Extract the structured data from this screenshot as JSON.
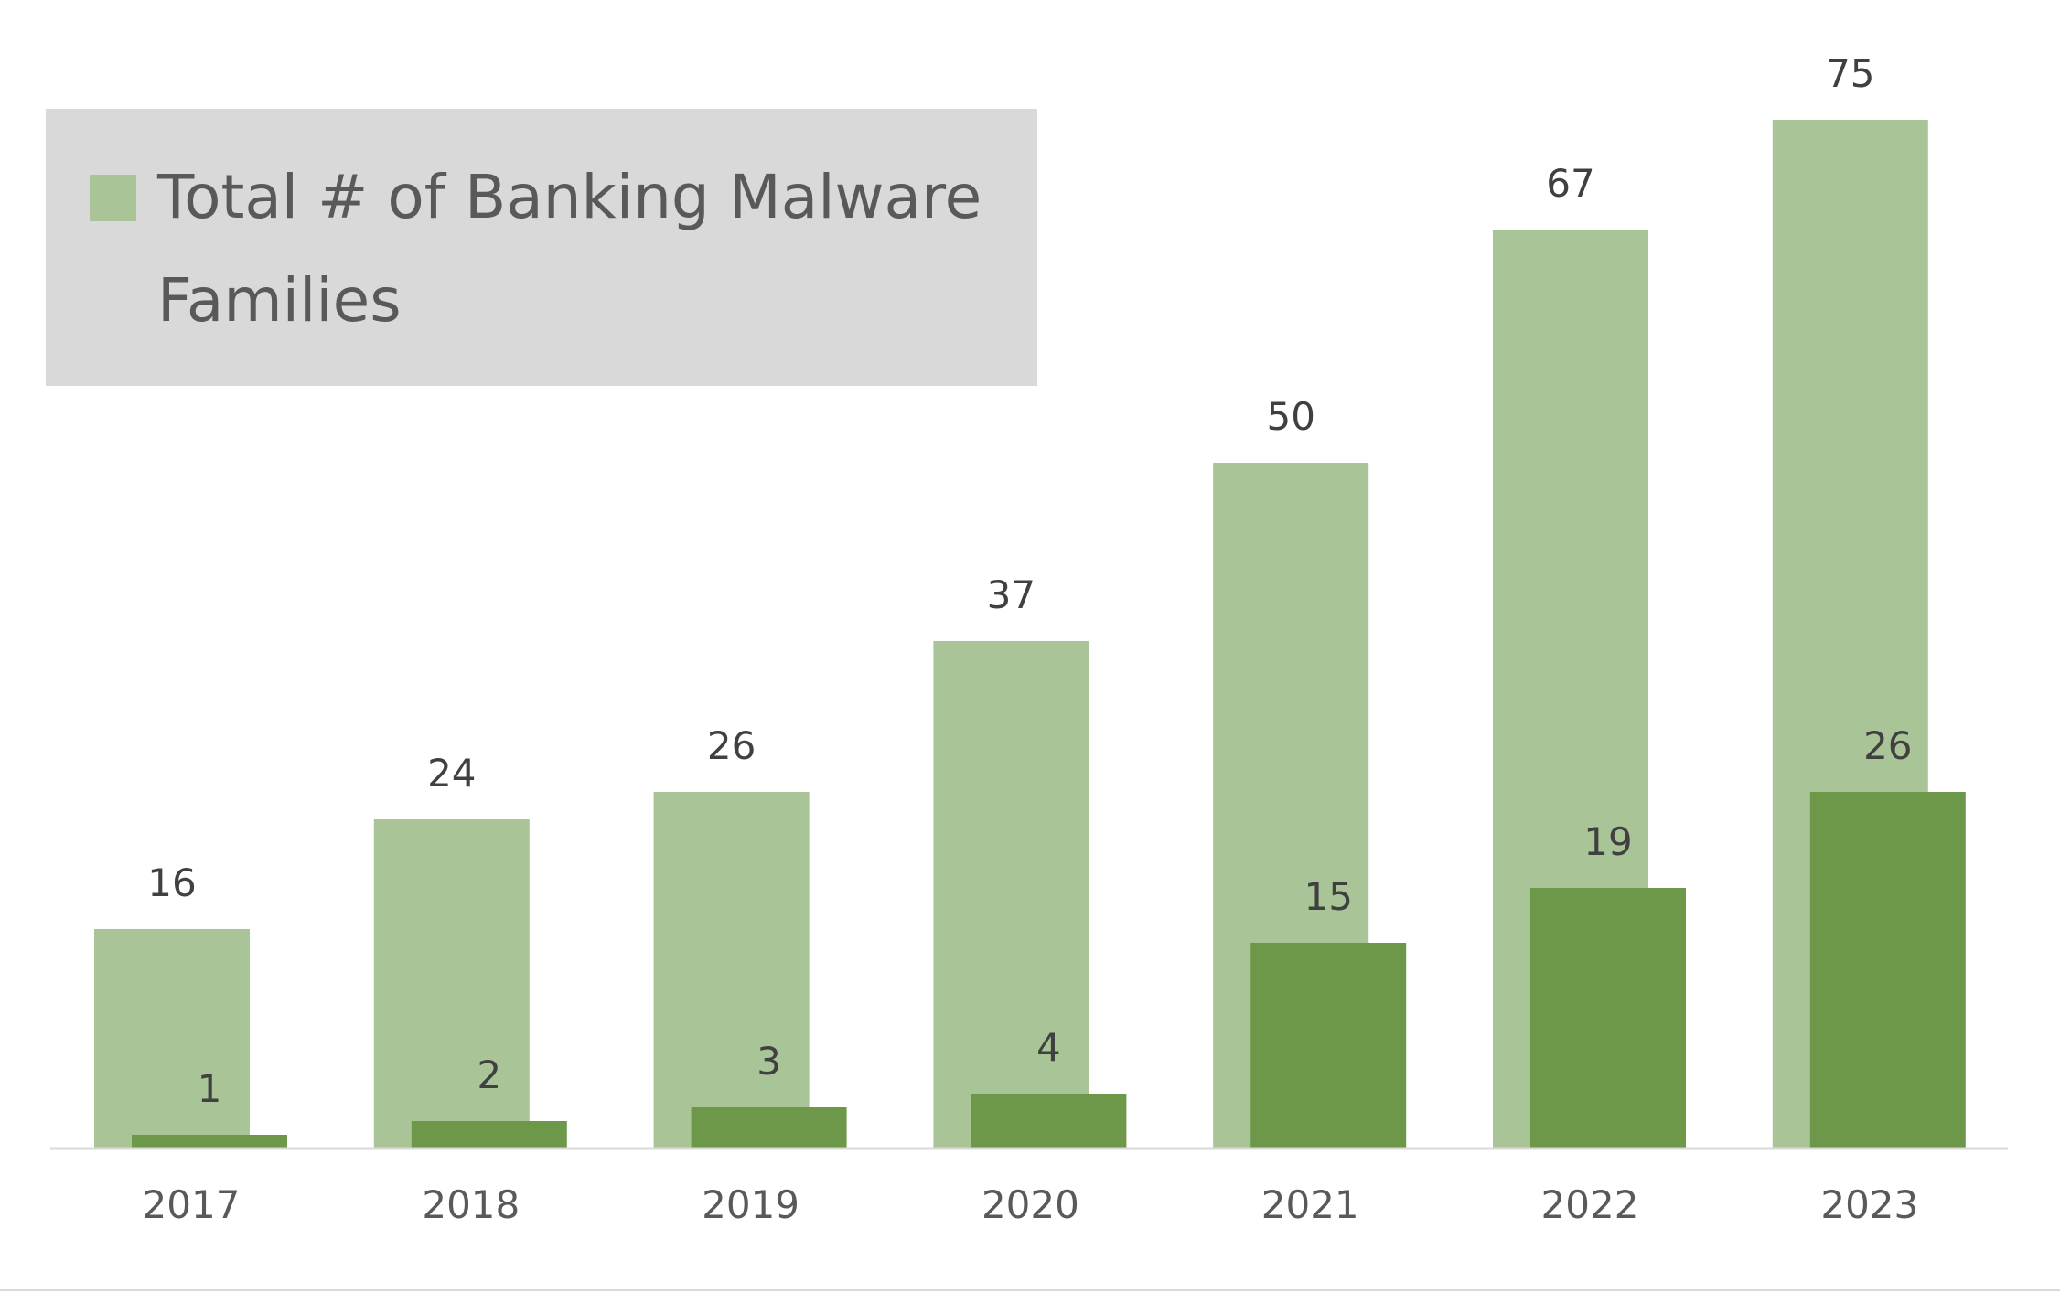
{
  "chart_data": {
    "type": "bar",
    "categories": [
      "2017",
      "2018",
      "2019",
      "2020",
      "2021",
      "2022",
      "2023"
    ],
    "series": [
      {
        "name": "Total # of Banking Malware Families",
        "values": [
          16,
          24,
          26,
          37,
          50,
          67,
          75
        ],
        "color": "#a9c496"
      },
      {
        "values": [
          1,
          2,
          3,
          4,
          15,
          19,
          26
        ],
        "color": "#6d984a"
      }
    ],
    "title": "",
    "xlabel": "",
    "ylabel": "",
    "ylim": [
      0,
      80
    ],
    "grid": false,
    "legend": {
      "placement": "top-left",
      "entries": [
        "Total # of Banking Malware Families"
      ]
    },
    "data_labels": true,
    "colors": {
      "axis": "#d9d9d9",
      "legend_background": "#d9d9d9",
      "text": "#595959"
    }
  }
}
